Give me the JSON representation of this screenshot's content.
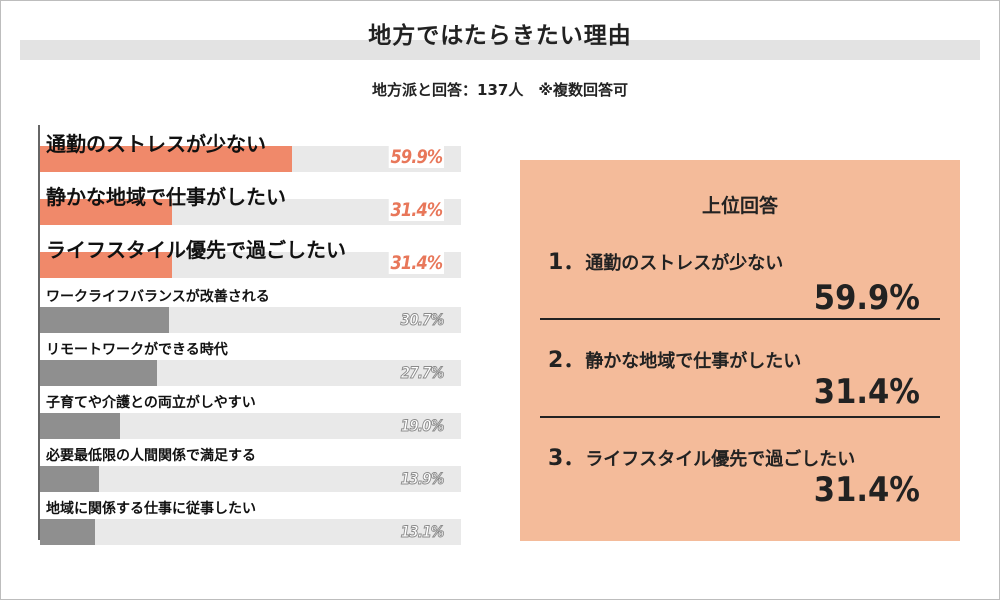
{
  "title": "地方ではたらきたい理由",
  "subtitle": "地方派と回答：137人　※複数回答可",
  "colors": {
    "highlight": "#f0896a",
    "muted": "#8f8f8f",
    "track": "#e9e9e9",
    "panel": "#f4bb9a",
    "value_highlight": "#e8775a"
  },
  "chart_data": {
    "type": "bar",
    "orientation": "horizontal",
    "categories": [
      "通勤のストレスが少ない",
      "静かな地域で仕事がしたい",
      "ライフスタイル優先で過ごしたい",
      "ワークライフバランスが改善される",
      "リモートワークができる時代",
      "子育てや介護との両立がしやすい",
      "必要最低限の人間関係で満足する",
      "地域に関係する仕事に従事したい"
    ],
    "values": [
      59.9,
      31.4,
      31.4,
      30.7,
      27.7,
      19.0,
      13.9,
      13.1
    ],
    "value_labels": [
      "59.9%",
      "31.4%",
      "31.4%",
      "30.7%",
      "27.7%",
      "19.0%",
      "13.9%",
      "13.1%"
    ],
    "highlighted_count": 3,
    "xlim": [
      0,
      100
    ]
  },
  "panel": {
    "title": "上位回答",
    "items": [
      {
        "rank": "1．",
        "label": "通勤のストレスが少ない",
        "value": "59.9%"
      },
      {
        "rank": "2．",
        "label": "静かな地域で仕事がしたい",
        "value": "31.4%"
      },
      {
        "rank": "3．",
        "label": "ライフスタイル優先で過ごしたい",
        "value": "31.4%"
      }
    ]
  }
}
